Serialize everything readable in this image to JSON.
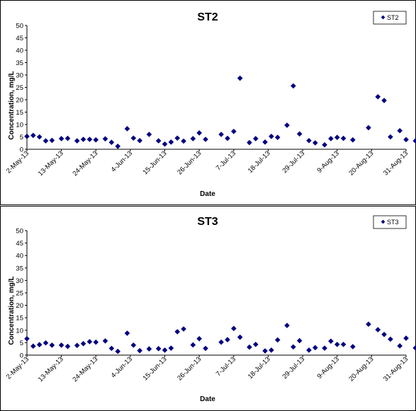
{
  "chart_data": [
    {
      "type": "scatter",
      "title": "ST2",
      "xlabel": "Date",
      "ylabel": "Concentration, mg/L",
      "ylim": [
        0,
        50
      ],
      "yticks": [
        "0",
        "5",
        "10",
        "15",
        "20",
        "25",
        "30",
        "35",
        "40",
        "45",
        "50"
      ],
      "xlim": [
        "2013-05-02",
        "2013-08-31"
      ],
      "xticks": [
        "2-May-13",
        "13-May-13",
        "24-May-13",
        "4-Jun-13",
        "15-Jun-13",
        "26-Jun-13",
        "7-Jul-13",
        "18-Jul-13",
        "29-Jul-13",
        "9-Aug-13",
        "20-Aug-13",
        "31-Aug-13"
      ],
      "grid": false,
      "legend_position": "top-right",
      "series": [
        {
          "name": "ST2",
          "color": "#000080",
          "points": [
            [
              "2013-05-02",
              5.2
            ],
            [
              "2013-05-04",
              5.6
            ],
            [
              "2013-05-06",
              5.0
            ],
            [
              "2013-05-08",
              3.4
            ],
            [
              "2013-05-10",
              3.6
            ],
            [
              "2013-05-13",
              4.3
            ],
            [
              "2013-05-15",
              4.4
            ],
            [
              "2013-05-18",
              3.4
            ],
            [
              "2013-05-20",
              4.0
            ],
            [
              "2013-05-22",
              4.0
            ],
            [
              "2013-05-24",
              3.8
            ],
            [
              "2013-05-27",
              4.2
            ],
            [
              "2013-05-29",
              2.8
            ],
            [
              "2013-05-31",
              1.2
            ],
            [
              "2013-06-03",
              8.3
            ],
            [
              "2013-06-05",
              4.5
            ],
            [
              "2013-06-07",
              3.5
            ],
            [
              "2013-06-10",
              6.0
            ],
            [
              "2013-06-13",
              3.4
            ],
            [
              "2013-06-15",
              2.1
            ],
            [
              "2013-06-17",
              2.9
            ],
            [
              "2013-06-19",
              4.5
            ],
            [
              "2013-06-21",
              3.3
            ],
            [
              "2013-06-24",
              4.3
            ],
            [
              "2013-06-26",
              6.6
            ],
            [
              "2013-06-28",
              4.0
            ],
            [
              "2013-07-03",
              6.0
            ],
            [
              "2013-07-05",
              4.4
            ],
            [
              "2013-07-07",
              7.2
            ],
            [
              "2013-07-09",
              28.7
            ],
            [
              "2013-07-12",
              2.7
            ],
            [
              "2013-07-14",
              4.3
            ],
            [
              "2013-07-17",
              2.9
            ],
            [
              "2013-07-19",
              5.2
            ],
            [
              "2013-07-21",
              4.8
            ],
            [
              "2013-07-24",
              9.7
            ],
            [
              "2013-07-26",
              25.6
            ],
            [
              "2013-07-28",
              6.2
            ],
            [
              "2013-07-31",
              3.5
            ],
            [
              "2013-08-02",
              2.6
            ],
            [
              "2013-08-05",
              1.8
            ],
            [
              "2013-08-07",
              4.3
            ],
            [
              "2013-08-09",
              4.8
            ],
            [
              "2013-08-11",
              4.4
            ],
            [
              "2013-08-14",
              3.8
            ],
            [
              "2013-08-19",
              8.7
            ],
            [
              "2013-08-22",
              21.2
            ],
            [
              "2013-08-24",
              19.7
            ],
            [
              "2013-08-26",
              5.0
            ],
            [
              "2013-08-29",
              7.5
            ],
            [
              "2013-08-31",
              3.9
            ],
            [
              "2013-09-03",
              3.4
            ]
          ]
        }
      ]
    },
    {
      "type": "scatter",
      "title": "ST3",
      "xlabel": "Date",
      "ylabel": "Concentration, mg/L",
      "ylim": [
        0,
        50
      ],
      "yticks": [
        "0",
        "5",
        "10",
        "15",
        "20",
        "25",
        "30",
        "35",
        "40",
        "45",
        "50"
      ],
      "xlim": [
        "2013-05-02",
        "2013-08-31"
      ],
      "xticks": [
        "2-May-13",
        "13-May-13",
        "24-May-13",
        "4-Jun-13",
        "15-Jun-13",
        "26-Jun-13",
        "7-Jul-13",
        "18-Jul-13",
        "29-Jul-13",
        "9-Aug-13",
        "20-Aug-13",
        "31-Aug-13"
      ],
      "grid": false,
      "legend_position": "top-right",
      "series": [
        {
          "name": "ST3",
          "color": "#000080",
          "points": [
            [
              "2013-05-02",
              6.6
            ],
            [
              "2013-05-04",
              3.6
            ],
            [
              "2013-05-06",
              4.2
            ],
            [
              "2013-05-08",
              4.9
            ],
            [
              "2013-05-10",
              4.0
            ],
            [
              "2013-05-13",
              4.0
            ],
            [
              "2013-05-15",
              3.5
            ],
            [
              "2013-05-18",
              3.9
            ],
            [
              "2013-05-20",
              4.6
            ],
            [
              "2013-05-22",
              5.4
            ],
            [
              "2013-05-24",
              5.2
            ],
            [
              "2013-05-27",
              5.7
            ],
            [
              "2013-05-29",
              2.7
            ],
            [
              "2013-05-31",
              1.5
            ],
            [
              "2013-06-03",
              8.8
            ],
            [
              "2013-06-05",
              4.0
            ],
            [
              "2013-06-07",
              1.8
            ],
            [
              "2013-06-10",
              2.5
            ],
            [
              "2013-06-13",
              2.6
            ],
            [
              "2013-06-15",
              2.0
            ],
            [
              "2013-06-17",
              2.8
            ],
            [
              "2013-06-19",
              9.4
            ],
            [
              "2013-06-21",
              10.5
            ],
            [
              "2013-06-24",
              4.1
            ],
            [
              "2013-06-26",
              6.6
            ],
            [
              "2013-06-28",
              2.7
            ],
            [
              "2013-07-03",
              5.2
            ],
            [
              "2013-07-05",
              6.2
            ],
            [
              "2013-07-07",
              10.7
            ],
            [
              "2013-07-09",
              7.2
            ],
            [
              "2013-07-12",
              3.2
            ],
            [
              "2013-07-14",
              4.3
            ],
            [
              "2013-07-17",
              1.7
            ],
            [
              "2013-07-19",
              2.0
            ],
            [
              "2013-07-21",
              6.1
            ],
            [
              "2013-07-24",
              11.9
            ],
            [
              "2013-07-26",
              3.3
            ],
            [
              "2013-07-28",
              5.8
            ],
            [
              "2013-07-31",
              2.0
            ],
            [
              "2013-08-02",
              3.0
            ],
            [
              "2013-08-05",
              2.8
            ],
            [
              "2013-08-07",
              5.6
            ],
            [
              "2013-08-09",
              4.3
            ],
            [
              "2013-08-11",
              4.3
            ],
            [
              "2013-08-14",
              3.4
            ],
            [
              "2013-08-19",
              12.4
            ],
            [
              "2013-08-22",
              10.2
            ],
            [
              "2013-08-24",
              8.3
            ],
            [
              "2013-08-26",
              6.4
            ],
            [
              "2013-08-29",
              3.7
            ],
            [
              "2013-08-31",
              6.8
            ],
            [
              "2013-09-03",
              2.9
            ]
          ]
        }
      ]
    }
  ]
}
